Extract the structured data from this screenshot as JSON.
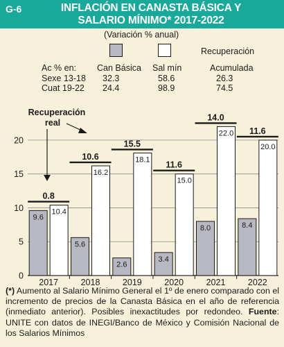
{
  "header": {
    "code": "G-6",
    "title_line1": "INFLACIÓN EN CANASTA BÁSICA Y",
    "title_line2": "SALARIO MÍNIMO* 2017-2022"
  },
  "subtitle": "(Variación % anual)",
  "legend": {
    "recuperacion_title": "Recuperación",
    "col_header": "Ac % en:",
    "canasta_label": "Can Básica",
    "salario_label": "Sal mín",
    "acumulada_label": "Acumulada",
    "rows": [
      {
        "label": "Sexe 13-18",
        "canasta": "32.3",
        "salario": "58.6",
        "acumulada": "26.3"
      },
      {
        "label": "Cuat 19-22",
        "canasta": "24.4",
        "salario": "98.9",
        "acumulada": "74.5"
      }
    ]
  },
  "annotation": {
    "line1": "Recuperación",
    "line2": "real"
  },
  "footnote": {
    "asterisk": "(*)",
    "text1": " Aumento al Salario Mínimo General el 1º de enero comparado con el incremento de precios de la Canasta Básica en el año de referencia (inmediato anterior). Posibles inexactitudes por redondeo. ",
    "source_label": "Fuente",
    "text2": ": UNITE con datos de INEGI/Banco de México y Comisión Nacional de los Salarios Mínimos"
  },
  "colors": {
    "header_bg": "#18a99b",
    "canasta_bar": "#b8b8c2",
    "salario_bar": "#ffffff",
    "background": "#f7f1dc"
  },
  "chart_data": {
    "type": "bar",
    "categories": [
      "2017",
      "2018",
      "2019",
      "2020",
      "2021",
      "2022"
    ],
    "series": [
      {
        "name": "Can Básica",
        "values": [
          9.6,
          5.6,
          2.6,
          3.4,
          8.0,
          8.4
        ],
        "labels": [
          "9.6",
          "5.6",
          "2.6",
          "3.4",
          "8.0",
          "8.4"
        ]
      },
      {
        "name": "Sal mín",
        "values": [
          10.4,
          16.2,
          18.1,
          15.0,
          22.0,
          20.0
        ],
        "labels": [
          "10.4",
          "16.2",
          "18.1",
          "15.0",
          "22.0",
          "20.0"
        ]
      }
    ],
    "recuperacion": [
      "0.8",
      "10.6",
      "15.5",
      "11.6",
      "14.0",
      "11.6"
    ],
    "yticks": [
      "0",
      "5",
      "10",
      "15",
      "20"
    ],
    "ylim": [
      0,
      24.5
    ],
    "grid": true
  }
}
